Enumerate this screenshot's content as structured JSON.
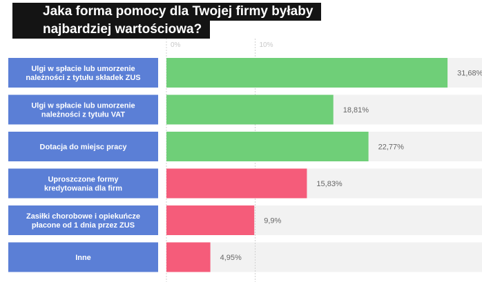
{
  "title_lines": [
    "Jaka forma pomocy dla Twojej firmy byłaby",
    "najbardziej wartościowa?"
  ],
  "colors": {
    "label_bg": "#5b7fd6",
    "green": "#6fcf78",
    "pink": "#f55c7a",
    "track": "#f2f2f2",
    "title_bg": "#141414"
  },
  "chart_data": {
    "type": "bar",
    "orientation": "horizontal",
    "title": "Jaka forma pomocy dla Twojej firmy byłaby najbardziej wartościowa?",
    "xlim": [
      0,
      36
    ],
    "ticks": [
      {
        "value": 0,
        "label": "0%"
      },
      {
        "value": 10,
        "label": "10%"
      }
    ],
    "bars": [
      {
        "label_lines": [
          "Ulgi w spłacie lub umorzenie",
          "należności z tytułu składek ZUS"
        ],
        "value": 31.68,
        "value_label": "31,68%",
        "group": "green"
      },
      {
        "label_lines": [
          "Ulgi w spłacie lub umorzenie",
          "należności z tytułu VAT"
        ],
        "value": 18.81,
        "value_label": "18,81%",
        "group": "green"
      },
      {
        "label_lines": [
          "Dotacja do miejsc pracy"
        ],
        "value": 22.77,
        "value_label": "22,77%",
        "group": "green"
      },
      {
        "label_lines": [
          "Uproszczone formy",
          "kredytowania dla firm"
        ],
        "value": 15.83,
        "value_label": "15,83%",
        "group": "pink"
      },
      {
        "label_lines": [
          "Zasiłki chorobowe i opiekuńcze",
          "płacone od 1 dnia przez ZUS"
        ],
        "value": 9.9,
        "value_label": "9,9%",
        "group": "pink"
      },
      {
        "label_lines": [
          "Inne"
        ],
        "value": 4.95,
        "value_label": "4,95%",
        "group": "pink"
      }
    ]
  }
}
